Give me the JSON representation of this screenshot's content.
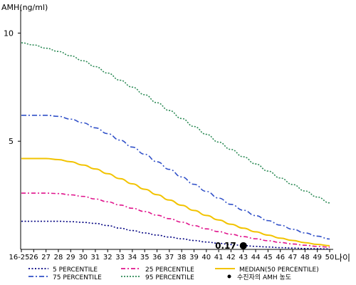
{
  "chart_data": {
    "type": "line",
    "title": "",
    "ylabel": "AMH(ng/ml)",
    "xlabel": "나이",
    "ylim": [
      0,
      11.2
    ],
    "grid": false,
    "legend_position": "bottom",
    "y_ticks": [
      "5",
      "10"
    ],
    "x": [
      "16-25",
      "26",
      "27",
      "28",
      "29",
      "30",
      "31",
      "32",
      "33",
      "34",
      "35",
      "36",
      "37",
      "38",
      "39",
      "40",
      "41",
      "42",
      "43",
      "44",
      "45",
      "46",
      "47",
      "48",
      "49",
      "50"
    ],
    "series": [
      {
        "name": "5 PERCENTILE",
        "color": "#000080",
        "dash": "2,2.5",
        "values": [
          1.3,
          1.3,
          1.3,
          1.3,
          1.28,
          1.25,
          1.2,
          1.1,
          0.98,
          0.87,
          0.76,
          0.66,
          0.57,
          0.49,
          0.41,
          0.34,
          0.28,
          0.22,
          0.18,
          0.14,
          0.11,
          0.08,
          0.06,
          0.04,
          0.03,
          0.02
        ]
      },
      {
        "name": "25 PERCENTILE",
        "color": "#e0148c",
        "dash": "6,3,2,3",
        "values": [
          2.6,
          2.6,
          2.6,
          2.58,
          2.52,
          2.45,
          2.33,
          2.2,
          2.05,
          1.9,
          1.75,
          1.58,
          1.42,
          1.26,
          1.1,
          0.95,
          0.82,
          0.7,
          0.59,
          0.49,
          0.4,
          0.32,
          0.25,
          0.19,
          0.14,
          0.1
        ]
      },
      {
        "name": "MEDIAN(50 PERCENTILE)",
        "color": "#f2c300",
        "dash": "",
        "values": [
          4.2,
          4.2,
          4.2,
          4.15,
          4.05,
          3.9,
          3.72,
          3.5,
          3.27,
          3.03,
          2.78,
          2.53,
          2.28,
          2.04,
          1.8,
          1.57,
          1.36,
          1.16,
          0.98,
          0.81,
          0.66,
          0.52,
          0.41,
          0.31,
          0.23,
          0.17
        ]
      },
      {
        "name": "75 PERCENTILE",
        "color": "#3050c8",
        "dash": "7,3,2,3",
        "values": [
          6.2,
          6.2,
          6.2,
          6.15,
          6.02,
          5.85,
          5.62,
          5.35,
          5.05,
          4.73,
          4.4,
          4.05,
          3.7,
          3.35,
          3.01,
          2.68,
          2.37,
          2.08,
          1.81,
          1.56,
          1.33,
          1.12,
          0.93,
          0.76,
          0.61,
          0.48
        ]
      },
      {
        "name": "95 PERCENTILE",
        "color": "#2e8b57",
        "dash": "2,2",
        "values": [
          9.55,
          9.45,
          9.3,
          9.15,
          8.95,
          8.72,
          8.45,
          8.15,
          7.82,
          7.5,
          7.15,
          6.78,
          6.42,
          6.05,
          5.68,
          5.32,
          4.96,
          4.62,
          4.28,
          3.95,
          3.62,
          3.3,
          3.0,
          2.7,
          2.42,
          2.15
        ]
      }
    ],
    "patient_point": {
      "name": "수진자의 AMH 농도",
      "x": "43",
      "value": 0.17,
      "label": "0.17",
      "color": "#000000"
    }
  }
}
